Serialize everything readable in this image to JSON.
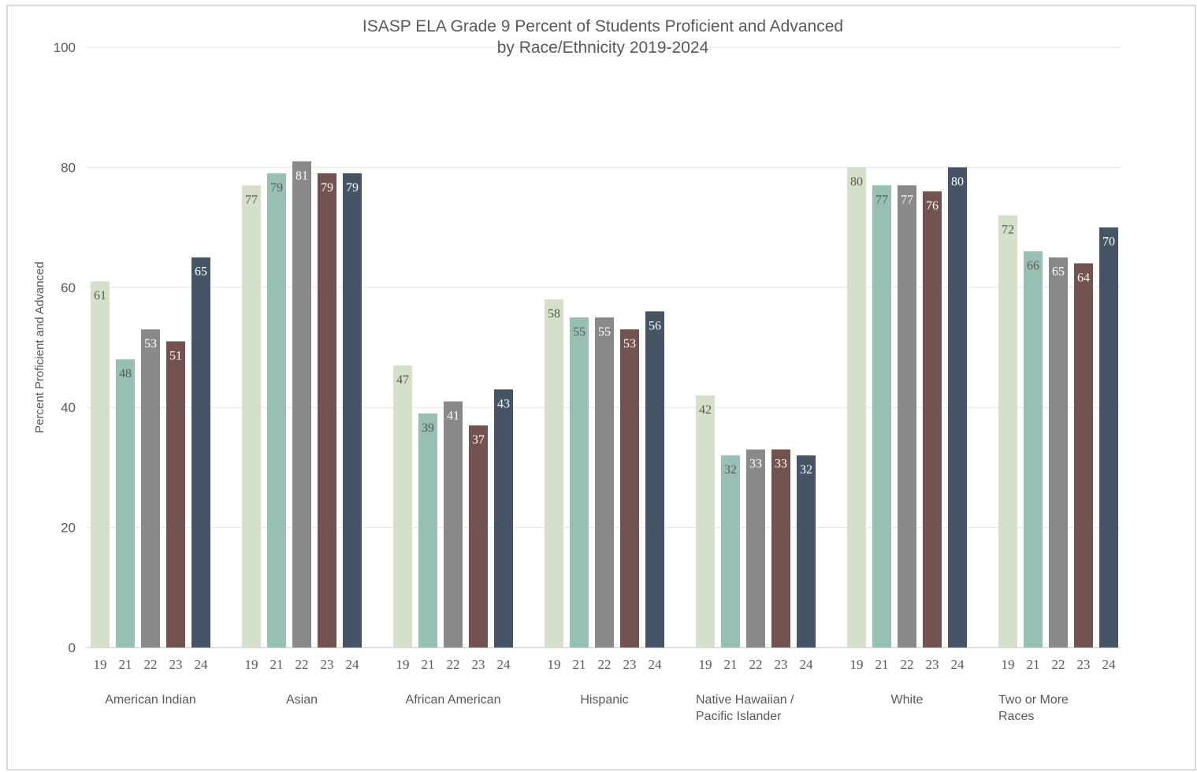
{
  "chart_data": {
    "type": "bar",
    "title": "ISASP ELA Grade 9 Percent of Students Proficient and Advanced",
    "subtitle": "by Race/Ethnicity 2019-2024",
    "ylabel": "Percent Proficient and Advanced",
    "xlabel": "",
    "ylim": [
      0,
      100
    ],
    "yticks": [
      0,
      20,
      40,
      60,
      80,
      100
    ],
    "grid": true,
    "categories": [
      [
        "American Indian"
      ],
      [
        "Asian"
      ],
      [
        "African American"
      ],
      [
        "Hispanic"
      ],
      [
        "Native Hawaiian /",
        "Pacific Islander"
      ],
      [
        "White"
      ],
      [
        "Two or More",
        "Races"
      ]
    ],
    "year_labels": [
      "19",
      "21",
      "22",
      "23",
      "24"
    ],
    "series": [
      {
        "year": "19",
        "color": "#d6e0c8",
        "label_color": "#595959",
        "values": [
          61,
          77,
          47,
          58,
          42,
          80,
          72
        ]
      },
      {
        "year": "21",
        "color": "#98bfb6",
        "label_color": "#595959",
        "values": [
          48,
          79,
          39,
          55,
          32,
          77,
          66
        ]
      },
      {
        "year": "22",
        "color": "#868c85",
        "label_color": "#ffffff",
        "values": [
          53,
          81,
          41,
          55,
          33,
          77,
          65
        ]
      },
      {
        "year": "23",
        "color": "#73534f",
        "label_color": "#ffffff",
        "values": [
          51,
          79,
          37,
          53,
          33,
          76,
          64
        ]
      },
      {
        "year": "24",
        "color": "#455565",
        "label_color": "#ffffff",
        "values": [
          65,
          79,
          43,
          56,
          32,
          80,
          70
        ]
      }
    ]
  }
}
